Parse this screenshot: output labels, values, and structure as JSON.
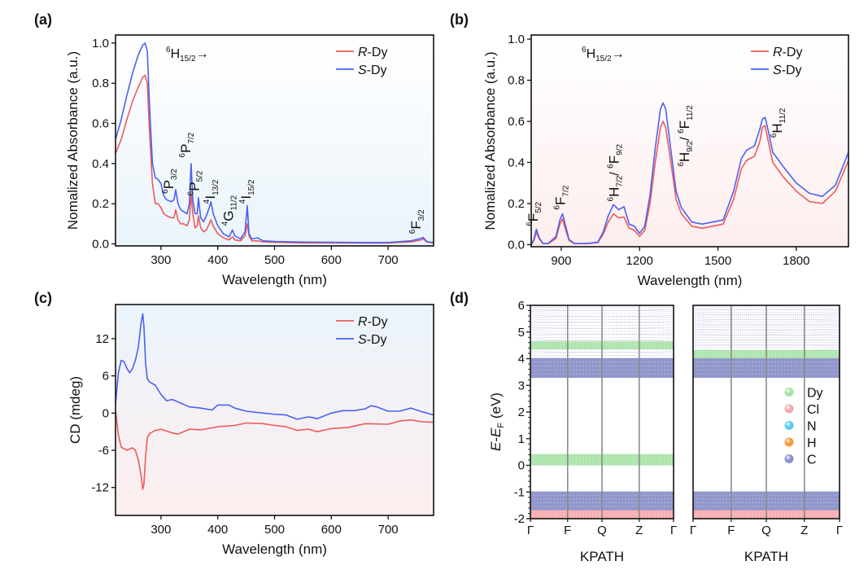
{
  "colors": {
    "R": "#ee5a5a",
    "S": "#4a62f0",
    "bg_blue": "#eaf4fb",
    "bg_pink": "#fdeeee",
    "Dy": "#a8e3a6",
    "Cl": "#f5a8aa",
    "N": "#5cc9f2",
    "H": "#f39a3a",
    "C": "#8b91c9",
    "kline": "#8a8a8a"
  },
  "chart_data": [
    {
      "id": "a",
      "panel_label": "(a)",
      "type": "line",
      "title": "",
      "xlabel": "Wavelength (nm)",
      "ylabel": "Nomalized Absorbance (a.u.)",
      "xlim": [
        220,
        780
      ],
      "ylim": [
        -0.01,
        1.04
      ],
      "xticks": [
        300,
        400,
        500,
        600,
        700
      ],
      "yticks": [
        0.0,
        0.2,
        0.4,
        0.6,
        0.8,
        1.0
      ],
      "ytick_labels": [
        "0.0",
        "0.2",
        "0.4",
        "0.6",
        "0.8",
        "1.0"
      ],
      "legend": {
        "position": "top-right",
        "entries": [
          {
            "italic": "R",
            "rest": "-Dy",
            "series": "R"
          },
          {
            "italic": "S",
            "rest": "-Dy",
            "series": "S"
          }
        ]
      },
      "header_annotation": {
        "pre": "6",
        "main": "H",
        "sub": "15/2",
        "post": "→"
      },
      "background": "blue",
      "series": [
        {
          "name": "R-Dy",
          "key": "R",
          "x": [
            220,
            230,
            240,
            250,
            260,
            268,
            272,
            276,
            280,
            285,
            290,
            295,
            300,
            305,
            310,
            318,
            323,
            326,
            330,
            335,
            340,
            346,
            350,
            353,
            356,
            360,
            364,
            366,
            370,
            375,
            380,
            385,
            388,
            392,
            396,
            400,
            410,
            420,
            426,
            430,
            440,
            448,
            452,
            455,
            460,
            470,
            480,
            500,
            550,
            600,
            650,
            700,
            740,
            750,
            758,
            762,
            768,
            775,
            780
          ],
          "y": [
            0.45,
            0.52,
            0.62,
            0.71,
            0.78,
            0.83,
            0.84,
            0.8,
            0.55,
            0.3,
            0.2,
            0.2,
            0.18,
            0.15,
            0.14,
            0.13,
            0.13,
            0.17,
            0.12,
            0.1,
            0.1,
            0.09,
            0.12,
            0.25,
            0.15,
            0.08,
            0.09,
            0.14,
            0.08,
            0.06,
            0.07,
            0.1,
            0.12,
            0.09,
            0.07,
            0.05,
            0.03,
            0.02,
            0.035,
            0.02,
            0.015,
            0.04,
            0.1,
            0.04,
            0.015,
            0.015,
            0.01,
            0.008,
            0.005,
            0.005,
            0.004,
            0.004,
            0.01,
            0.015,
            0.02,
            0.025,
            0.01,
            0.006,
            0.005
          ]
        },
        {
          "name": "S-Dy",
          "key": "S",
          "x": [
            220,
            230,
            240,
            250,
            260,
            268,
            272,
            276,
            280,
            285,
            290,
            295,
            300,
            305,
            310,
            318,
            323,
            326,
            330,
            335,
            340,
            346,
            350,
            353,
            356,
            360,
            364,
            366,
            370,
            375,
            380,
            385,
            388,
            392,
            396,
            400,
            410,
            420,
            426,
            430,
            440,
            448,
            452,
            455,
            460,
            470,
            480,
            500,
            550,
            600,
            650,
            700,
            740,
            750,
            758,
            762,
            768,
            775,
            780
          ],
          "y": [
            0.52,
            0.62,
            0.74,
            0.85,
            0.94,
            0.99,
            1.0,
            0.96,
            0.68,
            0.4,
            0.33,
            0.32,
            0.3,
            0.24,
            0.22,
            0.21,
            0.22,
            0.27,
            0.2,
            0.17,
            0.16,
            0.15,
            0.2,
            0.4,
            0.22,
            0.15,
            0.15,
            0.23,
            0.13,
            0.11,
            0.14,
            0.18,
            0.21,
            0.15,
            0.12,
            0.09,
            0.05,
            0.035,
            0.07,
            0.04,
            0.025,
            0.06,
            0.19,
            0.05,
            0.025,
            0.03,
            0.015,
            0.012,
            0.009,
            0.008,
            0.007,
            0.007,
            0.015,
            0.022,
            0.028,
            0.032,
            0.012,
            0.008,
            0.007
          ]
        }
      ],
      "annotations": [
        {
          "pre": "6",
          "main": "P",
          "sub": "3/2",
          "x": 322,
          "y": 0.25
        },
        {
          "pre": "6",
          "main": "P",
          "sub": "7/2",
          "x": 352,
          "y": 0.43
        },
        {
          "pre": "6",
          "main": "P",
          "sub": "5/2",
          "x": 367,
          "y": 0.24
        },
        {
          "pre": "4",
          "main": "I",
          "sub": "13/2",
          "x": 395,
          "y": 0.2
        },
        {
          "pre": "4",
          "main": "G",
          "sub": "11/2",
          "x": 427,
          "y": 0.09
        },
        {
          "pre": "4",
          "main": "I",
          "sub": "15/2",
          "x": 458,
          "y": 0.2
        },
        {
          "pre": "6",
          "main": "F",
          "sub": "3/2",
          "x": 757,
          "y": 0.05
        }
      ]
    },
    {
      "id": "b",
      "panel_label": "(b)",
      "type": "line",
      "title": "",
      "xlabel": "Wavelength (nm)",
      "ylabel": "Nomalized Absorbance (a.u.)",
      "xlim": [
        785,
        2000
      ],
      "ylim": [
        -0.01,
        1.02
      ],
      "xticks": [
        900,
        1200,
        1500,
        1800
      ],
      "yticks": [
        0.0,
        0.2,
        0.4,
        0.6,
        0.8,
        1.0
      ],
      "ytick_labels": [
        "0.0",
        "0.2",
        "0.4",
        "0.6",
        "0.8",
        "1.0"
      ],
      "legend": {
        "position": "top-right",
        "entries": [
          {
            "italic": "R",
            "rest": "-Dy",
            "series": "R"
          },
          {
            "italic": "S",
            "rest": "-Dy",
            "series": "S"
          }
        ]
      },
      "header_annotation": {
        "pre": "6",
        "main": "H",
        "sub": "15/2",
        "post": "→"
      },
      "background": "pink",
      "series": [
        {
          "name": "R-Dy",
          "key": "R",
          "x": [
            785,
            795,
            805,
            815,
            830,
            850,
            880,
            895,
            905,
            915,
            930,
            950,
            1000,
            1040,
            1060,
            1080,
            1100,
            1120,
            1140,
            1160,
            1180,
            1200,
            1220,
            1240,
            1260,
            1280,
            1290,
            1300,
            1320,
            1340,
            1360,
            1400,
            1440,
            1480,
            1520,
            1560,
            1590,
            1610,
            1640,
            1660,
            1670,
            1680,
            1690,
            1710,
            1750,
            1800,
            1850,
            1900,
            1950,
            2000
          ],
          "y": [
            0.0,
            0.02,
            0.06,
            0.03,
            0.005,
            0.005,
            0.03,
            0.1,
            0.125,
            0.08,
            0.02,
            0.005,
            0.005,
            0.01,
            0.05,
            0.11,
            0.15,
            0.13,
            0.135,
            0.08,
            0.07,
            0.04,
            0.07,
            0.2,
            0.4,
            0.57,
            0.6,
            0.57,
            0.4,
            0.22,
            0.15,
            0.09,
            0.08,
            0.09,
            0.1,
            0.22,
            0.37,
            0.41,
            0.43,
            0.5,
            0.57,
            0.58,
            0.52,
            0.4,
            0.33,
            0.26,
            0.21,
            0.2,
            0.26,
            0.41
          ]
        },
        {
          "name": "S-Dy",
          "key": "S",
          "x": [
            785,
            795,
            805,
            815,
            830,
            850,
            880,
            895,
            905,
            915,
            930,
            950,
            1000,
            1040,
            1060,
            1080,
            1100,
            1120,
            1140,
            1160,
            1180,
            1200,
            1220,
            1240,
            1260,
            1280,
            1290,
            1300,
            1320,
            1340,
            1360,
            1400,
            1440,
            1480,
            1520,
            1560,
            1590,
            1610,
            1640,
            1660,
            1670,
            1680,
            1690,
            1710,
            1750,
            1800,
            1850,
            1900,
            1950,
            2000
          ],
          "y": [
            0.0,
            0.025,
            0.075,
            0.035,
            0.006,
            0.006,
            0.04,
            0.12,
            0.15,
            0.1,
            0.025,
            0.006,
            0.006,
            0.012,
            0.06,
            0.14,
            0.195,
            0.17,
            0.185,
            0.1,
            0.09,
            0.055,
            0.09,
            0.24,
            0.47,
            0.66,
            0.69,
            0.66,
            0.46,
            0.26,
            0.18,
            0.11,
            0.1,
            0.11,
            0.12,
            0.26,
            0.42,
            0.46,
            0.48,
            0.56,
            0.61,
            0.62,
            0.57,
            0.45,
            0.38,
            0.3,
            0.25,
            0.235,
            0.29,
            0.45
          ]
        }
      ],
      "annotations": [
        {
          "pre": "6",
          "main": "F",
          "sub": "5/2",
          "x": 810,
          "y": 0.09
        },
        {
          "pre": "6",
          "main": "F",
          "sub": "7/2",
          "x": 915,
          "y": 0.17
        },
        {
          "pre": "6",
          "main": "H",
          "sub": "7/2",
          "post_pre": "6",
          "post_main": "F",
          "post_sub": "9/2",
          "x": 1120,
          "y": 0.21
        },
        {
          "pre": "6",
          "main": "H",
          "sub": "9/2",
          "post_pre": "6",
          "post_main": "F",
          "post_sub": "11/2",
          "x": 1390,
          "y": 0.38
        },
        {
          "pre": "6",
          "main": "H",
          "sub": "11/2",
          "x": 1745,
          "y": 0.52
        }
      ]
    },
    {
      "id": "c",
      "panel_label": "(c)",
      "type": "line",
      "title": "",
      "xlabel": "Wavelength (nm)",
      "ylabel": "CD (mdeg)",
      "xlim": [
        220,
        780
      ],
      "ylim": [
        -16.5,
        17.5
      ],
      "xticks": [
        300,
        400,
        500,
        600,
        700
      ],
      "yticks": [
        -12,
        -6,
        0,
        6,
        12
      ],
      "ytick_labels": [
        "-12",
        "-6",
        "0",
        "6",
        "12"
      ],
      "legend": {
        "position": "top-right",
        "entries": [
          {
            "italic": "R",
            "rest": "-Dy",
            "series": "R"
          },
          {
            "italic": "S",
            "rest": "-Dy",
            "series": "S"
          }
        ]
      },
      "background": "blue-to-pink",
      "series": [
        {
          "name": "R-Dy",
          "key": "R",
          "x": [
            220,
            225,
            230,
            240,
            250,
            255,
            260,
            265,
            268,
            270,
            273,
            276,
            280,
            290,
            300,
            320,
            330,
            350,
            370,
            400,
            430,
            450,
            480,
            500,
            520,
            540,
            560,
            575,
            600,
            630,
            660,
            700,
            720,
            740,
            760,
            780
          ],
          "y": [
            0.5,
            -3.5,
            -5.5,
            -6,
            -5.6,
            -6,
            -7.5,
            -10,
            -12.3,
            -11.5,
            -7,
            -4,
            -3.3,
            -2.8,
            -2.6,
            -3.2,
            -3.4,
            -2.6,
            -2.7,
            -2.2,
            -2,
            -1.6,
            -1.7,
            -2,
            -2.2,
            -2.8,
            -2.6,
            -3,
            -2.5,
            -2.3,
            -1.7,
            -1.8,
            -1.3,
            -1.1,
            -1.4,
            -1.5
          ]
        },
        {
          "name": "S-Dy",
          "key": "S",
          "x": [
            220,
            225,
            230,
            235,
            240,
            245,
            250,
            255,
            260,
            265,
            268,
            270,
            273,
            276,
            280,
            290,
            300,
            310,
            320,
            330,
            350,
            370,
            390,
            400,
            410,
            420,
            430,
            450,
            480,
            500,
            520,
            540,
            560,
            575,
            600,
            620,
            640,
            660,
            670,
            680,
            700,
            720,
            740,
            760,
            780
          ],
          "y": [
            1.5,
            6.5,
            8.5,
            8.3,
            7.2,
            6.5,
            7.2,
            8.5,
            10.5,
            14.5,
            16,
            14,
            8,
            5.5,
            5,
            4.5,
            3,
            2,
            2.2,
            1.8,
            1,
            0.8,
            0.5,
            1.3,
            1.3,
            1.3,
            0.8,
            0.3,
            0,
            -0.2,
            -0.3,
            -1,
            -0.6,
            -0.9,
            0,
            0.4,
            0.4,
            0.7,
            1.2,
            1,
            0.3,
            0.3,
            0.8,
            0.2,
            -0.3
          ]
        }
      ]
    },
    {
      "id": "d",
      "panel_label": "(d)",
      "type": "band_structure",
      "title": "",
      "xlabel": "KPATH",
      "ylabel_italic_E": "E",
      "ylabel_dash": "-",
      "ylabel_EF_main": "E",
      "ylabel_EF_sub": "F",
      "ylabel_unit": " (eV)",
      "ylim": [
        -2,
        6
      ],
      "yticks": [
        -2,
        -1,
        0,
        1,
        2,
        3,
        4,
        5,
        6
      ],
      "ytick_labels": [
        "-2",
        "-1",
        "0",
        "1",
        "2",
        "3",
        "4",
        "5",
        "6"
      ],
      "kpoints": [
        "Γ",
        "F",
        "Q",
        "Z",
        "Γ"
      ],
      "kpositions": [
        0,
        0.26,
        0.5,
        0.76,
        1.0
      ],
      "legend": {
        "position": "right",
        "entries": [
          {
            "label": "Dy",
            "color_key": "Dy"
          },
          {
            "label": "Cl",
            "color_key": "Cl"
          },
          {
            "label": "N",
            "color_key": "N"
          },
          {
            "label": "H",
            "color_key": "H"
          },
          {
            "label": "C",
            "color_key": "C"
          }
        ]
      },
      "subplots": [
        {
          "name": "left",
          "bands": [
            {
              "element": "Cl",
              "from": -2.0,
              "to": -1.68
            },
            {
              "element": "C",
              "from": -1.68,
              "to": -0.98
            },
            {
              "element": "Dy",
              "from": 0.0,
              "to": 0.42
            },
            {
              "element": "C",
              "from": 3.28,
              "to": 4.02
            },
            {
              "element": "Dy",
              "from": 4.35,
              "to": 4.65
            }
          ],
          "thin_band_region": [
            4.05,
            6.0
          ]
        },
        {
          "name": "right",
          "bands": [
            {
              "element": "Cl",
              "from": -2.0,
              "to": -1.68
            },
            {
              "element": "C",
              "from": -1.68,
              "to": -0.98
            },
            {
              "element": "C",
              "from": 3.28,
              "to": 4.02
            },
            {
              "element": "Dy",
              "from": 4.02,
              "to": 4.32
            }
          ],
          "thin_band_region": [
            4.35,
            6.0
          ]
        }
      ]
    }
  ]
}
